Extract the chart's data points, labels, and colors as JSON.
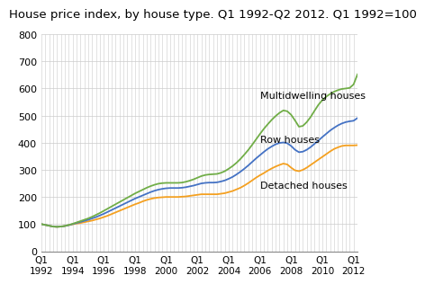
{
  "title": "House price index, by house type. Q1 1992-Q2 2012. Q1 1992=100",
  "ylim": [
    0,
    800
  ],
  "yticks": [
    0,
    100,
    200,
    300,
    400,
    500,
    600,
    700,
    800
  ],
  "xtick_labels": [
    "Q1\n1992",
    "Q1\n1994",
    "Q1\n1996",
    "Q1\n1998",
    "Q1\n2000",
    "Q1\n2002",
    "Q1\n2004",
    "Q1\n2006",
    "Q1\n2008",
    "Q1\n2010",
    "Q1\n2012"
  ],
  "series": {
    "Detached houses": {
      "color": "#f4a020",
      "values": [
        100,
        97,
        94,
        91,
        90,
        91,
        93,
        96,
        99,
        102,
        104,
        107,
        110,
        113,
        117,
        121,
        126,
        131,
        137,
        143,
        149,
        155,
        161,
        167,
        173,
        178,
        184,
        189,
        193,
        196,
        198,
        199,
        200,
        200,
        200,
        200,
        201,
        202,
        204,
        206,
        208,
        210,
        210,
        210,
        210,
        210,
        212,
        214,
        218,
        222,
        228,
        234,
        242,
        251,
        261,
        271,
        280,
        288,
        297,
        305,
        312,
        318,
        323,
        320,
        308,
        298,
        295,
        300,
        308,
        318,
        328,
        338,
        348,
        358,
        368,
        377,
        383,
        388,
        390,
        390,
        390,
        391
      ]
    },
    "Row houses": {
      "color": "#4472c4",
      "values": [
        100,
        97,
        94,
        91,
        90,
        91,
        93,
        96,
        100,
        104,
        108,
        112,
        116,
        121,
        126,
        132,
        138,
        145,
        152,
        159,
        166,
        173,
        180,
        187,
        194,
        200,
        206,
        212,
        218,
        223,
        227,
        230,
        232,
        233,
        233,
        233,
        234,
        236,
        239,
        242,
        246,
        250,
        252,
        253,
        253,
        254,
        257,
        261,
        267,
        274,
        283,
        293,
        304,
        316,
        329,
        342,
        354,
        366,
        377,
        386,
        394,
        399,
        401,
        398,
        388,
        374,
        365,
        367,
        374,
        384,
        396,
        408,
        421,
        433,
        445,
        455,
        464,
        471,
        476,
        479,
        481,
        491
      ]
    },
    "Multidwelling houses": {
      "color": "#70ad47",
      "values": [
        100,
        97,
        94,
        91,
        90,
        91,
        93,
        97,
        101,
        106,
        111,
        116,
        121,
        127,
        134,
        141,
        149,
        157,
        165,
        173,
        181,
        189,
        197,
        205,
        213,
        220,
        227,
        234,
        240,
        245,
        249,
        251,
        252,
        252,
        252,
        252,
        253,
        256,
        260,
        265,
        271,
        277,
        281,
        283,
        284,
        285,
        289,
        295,
        304,
        314,
        326,
        340,
        356,
        373,
        392,
        412,
        432,
        451,
        468,
        484,
        498,
        510,
        519,
        516,
        503,
        482,
        459,
        462,
        476,
        495,
        518,
        540,
        557,
        570,
        580,
        588,
        594,
        598,
        600,
        602,
        615,
        652
      ]
    }
  },
  "annotation_Multidwelling": {
    "xi": 56,
    "yi": 575,
    "text": "Multidwelling houses"
  },
  "annotation_Row": {
    "xi": 56,
    "yi": 413,
    "text": "Row houses"
  },
  "annotation_Detached": {
    "xi": 56,
    "yi": 242,
    "text": "Detached houses"
  },
  "background_color": "#ffffff",
  "grid_color": "#cccccc",
  "title_fontsize": 9.5
}
